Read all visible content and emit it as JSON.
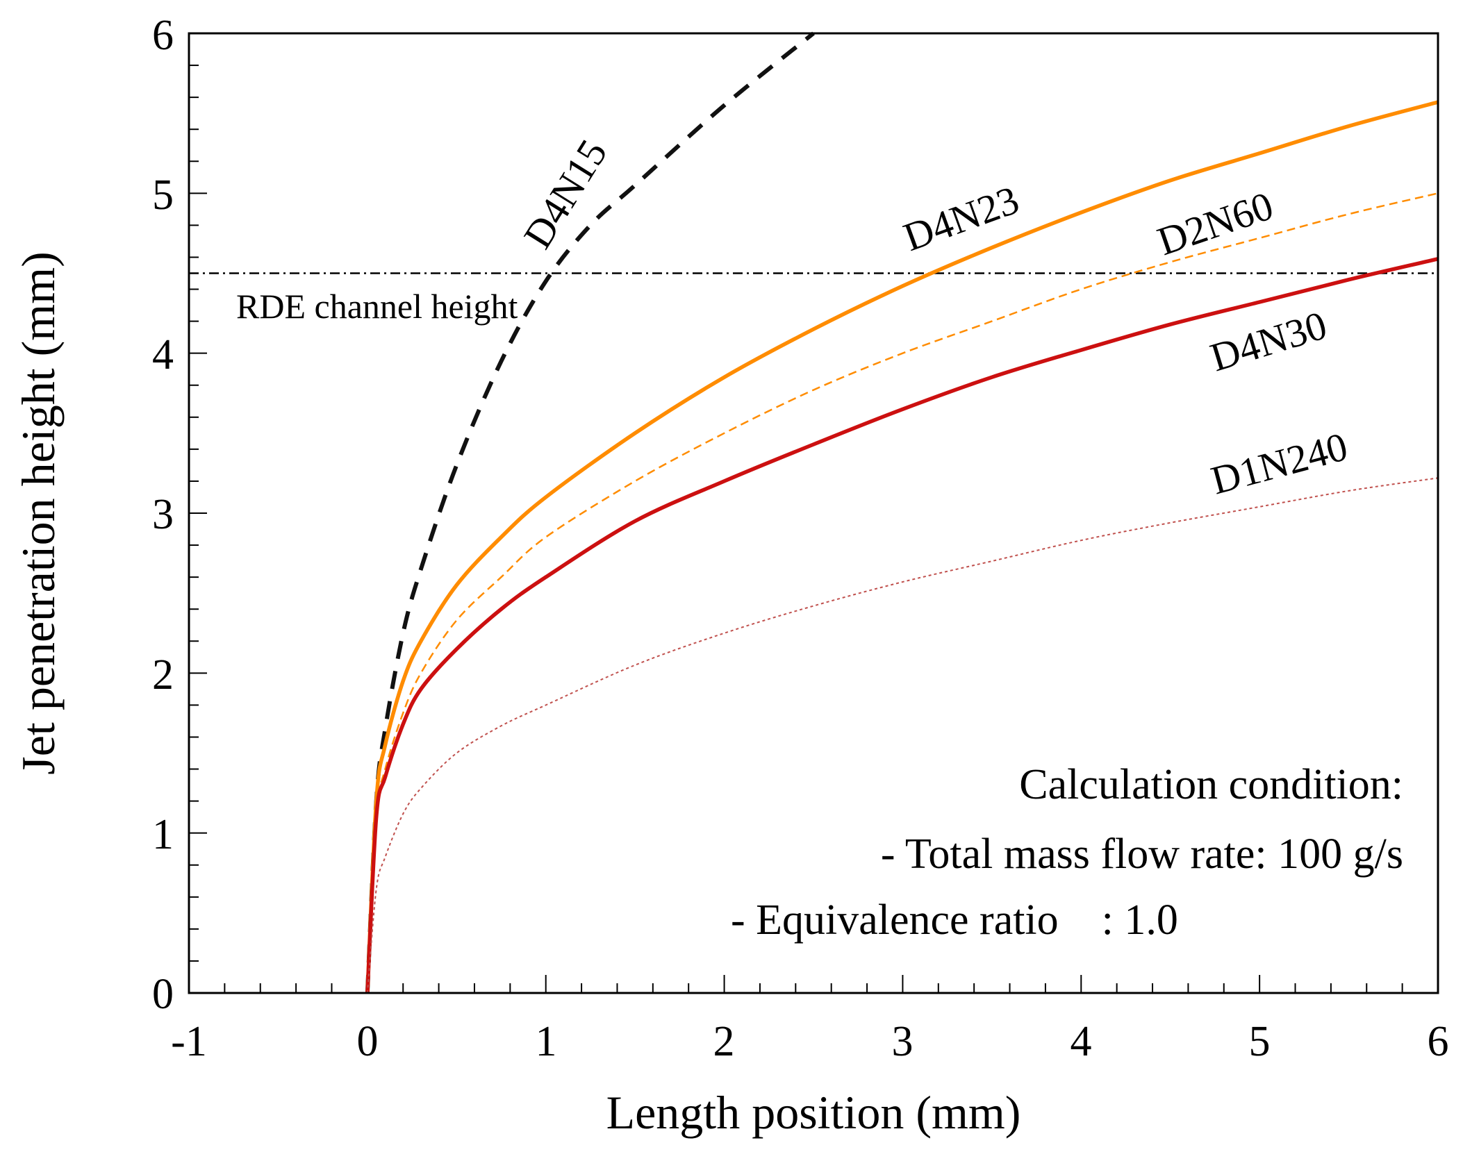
{
  "chart_data": {
    "type": "line",
    "xlabel": "Length position (mm)",
    "ylabel": "Jet penetration height (mm)",
    "xlim": [
      -1,
      6
    ],
    "ylim": [
      0,
      6
    ],
    "x_ticks": [
      "-1",
      "0",
      "1",
      "2",
      "3",
      "4",
      "5",
      "6"
    ],
    "y_ticks": [
      "0",
      "1",
      "2",
      "3",
      "4",
      "5",
      "6"
    ],
    "grid": false,
    "colors": {
      "D4N15": "#111111",
      "D4N23": "#ff8c00",
      "D2N60": "#ff8c00",
      "D4N30": "#cc1010",
      "D1N240": "#c0504d",
      "reference": "#000000"
    },
    "series": [
      {
        "name": "D4N15",
        "style": "dashed-thick",
        "x": [
          0,
          0.05,
          0.1,
          0.2,
          0.3,
          0.5,
          0.75,
          1.0,
          1.25,
          1.5,
          2.0,
          2.5
        ],
        "y": [
          0,
          1.2,
          1.65,
          2.25,
          2.65,
          3.3,
          3.95,
          4.45,
          4.8,
          5.05,
          5.55,
          6.0
        ]
      },
      {
        "name": "D4N23",
        "style": "solid-thick",
        "x": [
          0,
          0.05,
          0.1,
          0.2,
          0.3,
          0.5,
          0.75,
          1.0,
          1.5,
          2.0,
          2.5,
          3.0,
          3.5,
          4.0,
          4.5,
          5.0,
          5.5,
          6.0
        ],
        "y": [
          0,
          1.2,
          1.55,
          1.95,
          2.2,
          2.55,
          2.85,
          3.1,
          3.5,
          3.85,
          4.15,
          4.42,
          4.66,
          4.88,
          5.08,
          5.25,
          5.42,
          5.57
        ]
      },
      {
        "name": "D2N60",
        "style": "dashed-thin",
        "x": [
          0,
          0.05,
          0.1,
          0.2,
          0.3,
          0.5,
          0.75,
          1.0,
          1.5,
          2.0,
          2.5,
          3.0,
          3.5,
          4.0,
          4.5,
          5.0,
          5.5,
          6.0
        ],
        "y": [
          0,
          1.1,
          1.4,
          1.75,
          2.0,
          2.33,
          2.6,
          2.85,
          3.2,
          3.5,
          3.77,
          4.0,
          4.2,
          4.4,
          4.57,
          4.72,
          4.87,
          5.0
        ]
      },
      {
        "name": "D4N30",
        "style": "solid-thick",
        "x": [
          0,
          0.05,
          0.1,
          0.2,
          0.3,
          0.5,
          0.75,
          1.0,
          1.5,
          2.0,
          2.5,
          3.0,
          3.5,
          4.0,
          4.5,
          5.0,
          5.5,
          6.0
        ],
        "y": [
          0,
          1.1,
          1.35,
          1.68,
          1.9,
          2.15,
          2.4,
          2.6,
          2.95,
          3.2,
          3.43,
          3.65,
          3.85,
          4.02,
          4.18,
          4.32,
          4.46,
          4.59
        ]
      },
      {
        "name": "D1N240",
        "style": "dotted-thin",
        "x": [
          0,
          0.05,
          0.1,
          0.2,
          0.3,
          0.5,
          0.75,
          1.0,
          1.5,
          2.0,
          2.5,
          3.0,
          3.5,
          4.0,
          4.5,
          5.0,
          5.5,
          6.0
        ],
        "y": [
          0,
          0.65,
          0.85,
          1.12,
          1.28,
          1.5,
          1.67,
          1.8,
          2.05,
          2.25,
          2.42,
          2.57,
          2.7,
          2.83,
          2.94,
          3.04,
          3.14,
          3.22
        ]
      }
    ],
    "series_labels": [
      {
        "name": "D4N15",
        "text": "D4N15"
      },
      {
        "name": "D4N23",
        "text": "D4N23"
      },
      {
        "name": "D2N60",
        "text": "D2N60"
      },
      {
        "name": "D4N30",
        "text": "D4N30"
      },
      {
        "name": "D1N240",
        "text": "D1N240"
      }
    ],
    "reference_line": {
      "y": 4.5,
      "style": "dash-dot",
      "label": "RDE channel height"
    },
    "annotations": [
      "Calculation condition:",
      "- Total mass flow rate: 100 g/s",
      "- Equivalence ratio    : 1.0"
    ]
  }
}
